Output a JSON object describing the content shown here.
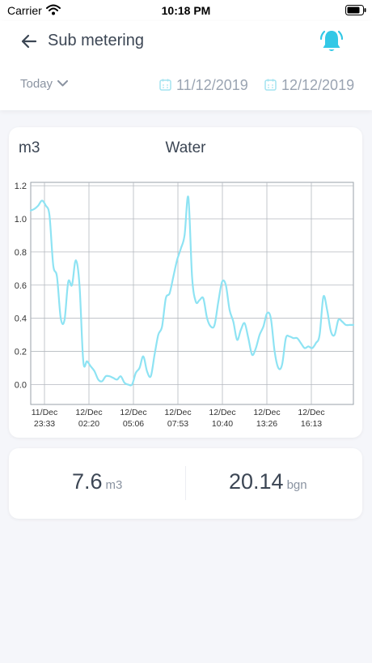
{
  "status_bar": {
    "carrier": "Carrier",
    "time": "10:18 PM"
  },
  "header": {
    "title": "Sub metering",
    "period": "Today",
    "date_from": "11/12/2019",
    "date_to": "12/12/2019",
    "accent": "#33c8e6"
  },
  "chart": {
    "unit_label": "m3",
    "title": "Water"
  },
  "chart_data": {
    "type": "line",
    "title": "Water",
    "ylabel": "m3",
    "xlabel": "",
    "ylim": [
      -0.12,
      1.22
    ],
    "yticks": [
      "1.2",
      "1.0",
      "0.8",
      "0.6",
      "0.4",
      "0.2",
      "0.0"
    ],
    "xticks": [
      {
        "line1": "11/Dec",
        "line2": "23:33"
      },
      {
        "line1": "12/Dec",
        "line2": "02:20"
      },
      {
        "line1": "12/Dec",
        "line2": "05:06"
      },
      {
        "line1": "12/Dec",
        "line2": "07:53"
      },
      {
        "line1": "12/Dec",
        "line2": "10:40"
      },
      {
        "line1": "12/Dec",
        "line2": "13:26"
      },
      {
        "line1": "12/Dec",
        "line2": "16:13"
      }
    ],
    "grid": true,
    "color": "#8ee3f3",
    "series": [
      {
        "values": [
          1.05,
          1.06,
          1.08,
          1.11,
          1.08,
          1.02,
          0.72,
          0.65,
          0.4,
          0.39,
          0.62,
          0.6,
          0.75,
          0.6,
          0.14,
          0.14,
          0.11,
          0.08,
          0.03,
          0.02,
          0.05,
          0.05,
          0.04,
          0.03,
          0.05,
          0.01,
          0.0,
          0.0,
          0.07,
          0.1,
          0.17,
          0.08,
          0.05,
          0.18,
          0.3,
          0.35,
          0.52,
          0.55,
          0.65,
          0.75,
          0.82,
          0.9,
          1.13,
          0.65,
          0.5,
          0.51,
          0.52,
          0.4,
          0.35,
          0.36,
          0.5,
          0.62,
          0.6,
          0.45,
          0.38,
          0.27,
          0.33,
          0.37,
          0.28,
          0.18,
          0.22,
          0.3,
          0.35,
          0.43,
          0.4,
          0.2,
          0.1,
          0.12,
          0.28,
          0.29,
          0.28,
          0.28,
          0.25,
          0.22,
          0.23,
          0.22,
          0.25,
          0.3,
          0.53,
          0.45,
          0.32,
          0.3,
          0.39,
          0.38,
          0.36,
          0.36,
          0.36
        ]
      }
    ]
  },
  "summary": {
    "volume_value": "7.6",
    "volume_unit": "m3",
    "cost_value": "20.14",
    "cost_unit": "bgn"
  }
}
